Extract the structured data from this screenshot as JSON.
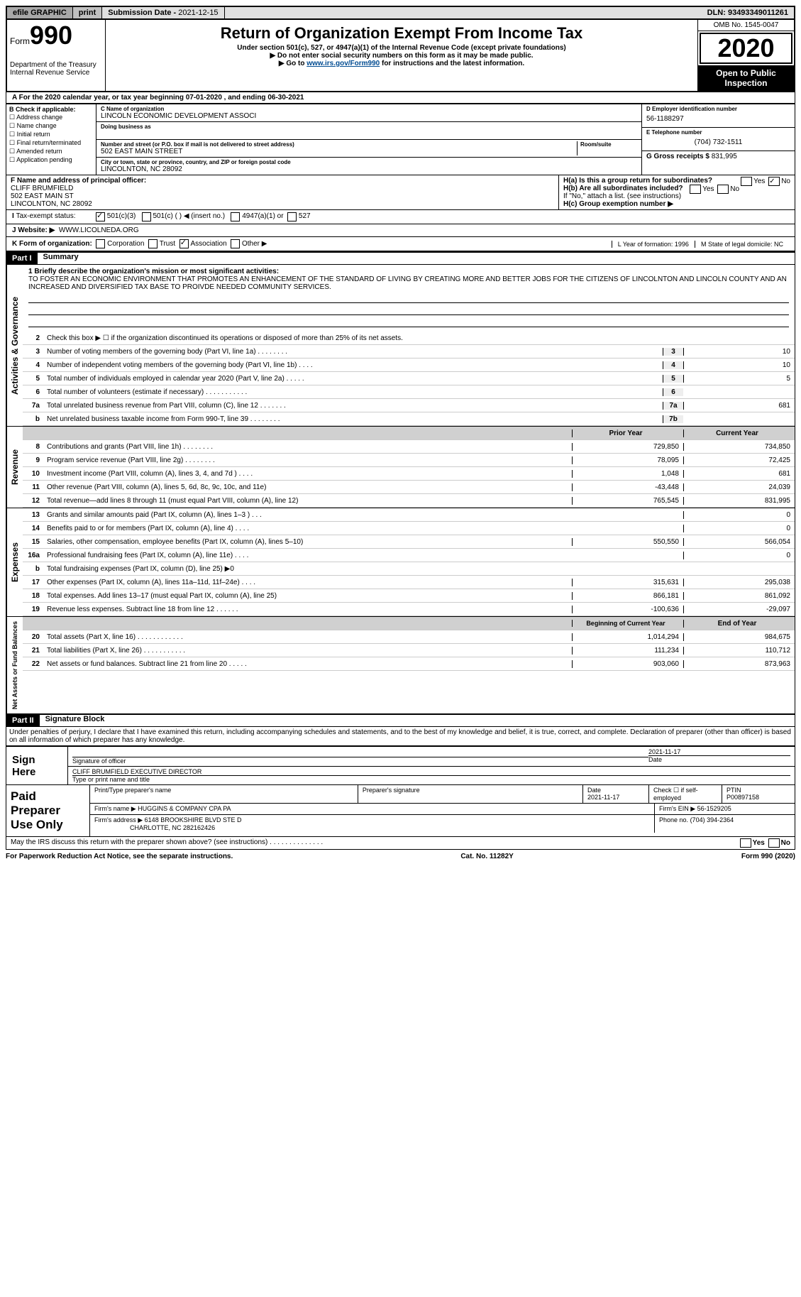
{
  "topbar": {
    "efile": "efile GRAPHIC",
    "print": "print",
    "submission_label": "Submission Date - ",
    "submission_date": "2021-12-15",
    "dln_label": "DLN: ",
    "dln": "93493349011261"
  },
  "header": {
    "form_word": "Form",
    "form_num": "990",
    "dept": "Department of the Treasury",
    "irs": "Internal Revenue Service",
    "title": "Return of Organization Exempt From Income Tax",
    "sub1": "Under section 501(c), 527, or 4947(a)(1) of the Internal Revenue Code (except private foundations)",
    "sub2": "▶ Do not enter social security numbers on this form as it may be made public.",
    "sub3_pre": "▶ Go to ",
    "sub3_link": "www.irs.gov/Form990",
    "sub3_post": " for instructions and the latest information.",
    "omb": "OMB No. 1545-0047",
    "year": "2020",
    "open": "Open to Public Inspection"
  },
  "taxyear": "A For the 2020 calendar year, or tax year beginning 07-01-2020  , and ending 06-30-2021",
  "colB": {
    "header": "B Check if applicable:",
    "items": [
      "Address change",
      "Name change",
      "Initial return",
      "Final return/terminated",
      "Amended return",
      "Application pending"
    ]
  },
  "boxC": {
    "label": "C Name of organization",
    "name": "LINCOLN ECONOMIC DEVELOPMENT ASSOCI",
    "dba_label": "Doing business as",
    "street_label": "Number and street (or P.O. box if mail is not delivered to street address)",
    "room_label": "Room/suite",
    "street": "502 EAST MAIN STREET",
    "city_label": "City or town, state or province, country, and ZIP or foreign postal code",
    "city": "LINCOLNTON, NC  28092"
  },
  "boxD": {
    "label": "D Employer identification number",
    "val": "56-1188297"
  },
  "boxE": {
    "label": "E Telephone number",
    "val": "(704) 732-1511"
  },
  "boxG": {
    "label": "G Gross receipts $",
    "val": "831,995"
  },
  "boxF": {
    "label": "F  Name and address of principal officer:",
    "name": "CLIFF BRUMFIELD",
    "addr1": "502 EAST MAIN ST",
    "addr2": "LINCOLNTON, NC  28092"
  },
  "boxH": {
    "ha": "H(a)  Is this a group return for subordinates?",
    "hb": "H(b)  Are all subordinates included?",
    "hnote": "If \"No,\" attach a list. (see instructions)",
    "hc": "H(c)  Group exemption number ▶",
    "yes": "Yes",
    "no": "No"
  },
  "taxexempt": {
    "label": "Tax-exempt status:",
    "o1": "501(c)(3)",
    "o2": "501(c) (  ) ◀ (insert no.)",
    "o3": "4947(a)(1) or",
    "o4": "527"
  },
  "website": {
    "label": "J    Website: ▶",
    "val": "WWW.LICOLNEDA.ORG"
  },
  "kline": {
    "label": "K Form of organization:",
    "o1": "Corporation",
    "o2": "Trust",
    "o3": "Association",
    "o4": "Other ▶",
    "l": "L Year of formation: 1996",
    "m": "M State of legal domicile: NC"
  },
  "part1": {
    "num": "Part I",
    "title": "Summary"
  },
  "gov": {
    "label": "Activities & Governance",
    "l1_label": "1   Briefly describe the organization's mission or most significant activities:",
    "l1_text": "TO FOSTER AN ECONOMIC ENVIRONMENT THAT PROMOTES AN ENHANCEMENT OF THE STANDARD OF LIVING BY CREATING MORE AND BETTER JOBS FOR THE CITIZENS OF LINCOLNTON AND LINCOLN COUNTY AND AN INCREASED AND DIVERSIFIED TAX BASE TO PROIVDE NEEDED COMMUNITY SERVICES.",
    "l2": "Check this box ▶ ☐  if the organization discontinued its operations or disposed of more than 25% of its net assets.",
    "lines": [
      {
        "n": "3",
        "d": "Number of voting members of the governing body (Part VI, line 1a)  .   .   .   .   .   .   .   .",
        "b": "3",
        "v": "10"
      },
      {
        "n": "4",
        "d": "Number of independent voting members of the governing body (Part VI, line 1b)   .   .   .   .",
        "b": "4",
        "v": "10"
      },
      {
        "n": "5",
        "d": "Total number of individuals employed in calendar year 2020 (Part V, line 2a)   .   .   .   .   .",
        "b": "5",
        "v": "5"
      },
      {
        "n": "6",
        "d": "Total number of volunteers (estimate if necessary)   .   .   .   .   .   .   .   .   .   .   .",
        "b": "6",
        "v": ""
      },
      {
        "n": "7a",
        "d": "Total unrelated business revenue from Part VIII, column (C), line 12   .   .   .   .   .   .   .",
        "b": "7a",
        "v": "681"
      },
      {
        "n": "b",
        "d": "Net unrelated business taxable income from Form 990-T, line 39   .   .   .   .   .   .   .   .",
        "b": "7b",
        "v": ""
      }
    ]
  },
  "rev": {
    "label": "Revenue",
    "header": {
      "py": "Prior Year",
      "cy": "Current Year"
    },
    "lines": [
      {
        "n": "8",
        "d": "Contributions and grants (Part VIII, line 1h)   .   .   .   .   .   .   .   .",
        "py": "729,850",
        "cy": "734,850"
      },
      {
        "n": "9",
        "d": "Program service revenue (Part VIII, line 2g)   .   .   .   .   .   .   .   .",
        "py": "78,095",
        "cy": "72,425"
      },
      {
        "n": "10",
        "d": "Investment income (Part VIII, column (A), lines 3, 4, and 7d )   .   .   .   .",
        "py": "1,048",
        "cy": "681"
      },
      {
        "n": "11",
        "d": "Other revenue (Part VIII, column (A), lines 5, 6d, 8c, 9c, 10c, and 11e)",
        "py": "-43,448",
        "cy": "24,039"
      },
      {
        "n": "12",
        "d": "Total revenue—add lines 8 through 11 (must equal Part VIII, column (A), line 12)",
        "py": "765,545",
        "cy": "831,995"
      }
    ]
  },
  "exp": {
    "label": "Expenses",
    "lines": [
      {
        "n": "13",
        "d": "Grants and similar amounts paid (Part IX, column (A), lines 1–3 )  .   .   .",
        "py": "",
        "cy": "0"
      },
      {
        "n": "14",
        "d": "Benefits paid to or for members (Part IX, column (A), line 4)  .   .   .   .",
        "py": "",
        "cy": "0"
      },
      {
        "n": "15",
        "d": "Salaries, other compensation, employee benefits (Part IX, column (A), lines 5–10)",
        "py": "550,550",
        "cy": "566,054"
      },
      {
        "n": "16a",
        "d": "Professional fundraising fees (Part IX, column (A), line 11e)  .   .   .   .",
        "py": "",
        "cy": "0"
      },
      {
        "n": "b",
        "d": "Total fundraising expenses (Part IX, column (D), line 25) ▶0",
        "py": "—",
        "cy": "—"
      },
      {
        "n": "17",
        "d": "Other expenses (Part IX, column (A), lines 11a–11d, 11f–24e)  .   .   .   .",
        "py": "315,631",
        "cy": "295,038"
      },
      {
        "n": "18",
        "d": "Total expenses. Add lines 13–17 (must equal Part IX, column (A), line 25)",
        "py": "866,181",
        "cy": "861,092"
      },
      {
        "n": "19",
        "d": "Revenue less expenses. Subtract line 18 from line 12  .   .   .   .   .   .",
        "py": "-100,636",
        "cy": "-29,097"
      }
    ]
  },
  "net": {
    "label": "Net Assets or Fund Balances",
    "header": {
      "py": "Beginning of Current Year",
      "cy": "End of Year"
    },
    "lines": [
      {
        "n": "20",
        "d": "Total assets (Part X, line 16)  .   .   .   .   .   .   .   .   .   .   .   .",
        "py": "1,014,294",
        "cy": "984,675"
      },
      {
        "n": "21",
        "d": "Total liabilities (Part X, line 26)  .   .   .   .   .   .   .   .   .   .   .",
        "py": "111,234",
        "cy": "110,712"
      },
      {
        "n": "22",
        "d": "Net assets or fund balances. Subtract line 21 from line 20  .   .   .   .   .",
        "py": "903,060",
        "cy": "873,963"
      }
    ]
  },
  "part2": {
    "num": "Part II",
    "title": "Signature Block"
  },
  "perjury": "Under penalties of perjury, I declare that I have examined this return, including accompanying schedules and statements, and to the best of my knowledge and belief, it is true, correct, and complete. Declaration of preparer (other than officer) is based on all information of which preparer has any knowledge.",
  "sign": {
    "here": "Sign Here",
    "sig_label": "Signature of officer",
    "date_label": "Date",
    "date": "2021-11-17",
    "name": "CLIFF BRUMFIELD  EXECUTIVE DIRECTOR",
    "name_label": "Type or print name and title"
  },
  "paid": {
    "label": "Paid Preparer Use Only",
    "h1": "Print/Type preparer's name",
    "h2": "Preparer's signature",
    "date_label": "Date",
    "date": "2021-11-17",
    "check_label": "Check ☐ if self-employed",
    "ptin_label": "PTIN",
    "ptin": "P00897158",
    "firm_label": "Firm's name   ▶",
    "firm": "HUGGINS & COMPANY CPA PA",
    "ein_label": "Firm's EIN ▶",
    "ein": "56-1529205",
    "addr_label": "Firm's address ▶",
    "addr1": "6148 BROOKSHIRE BLVD STE D",
    "addr2": "CHARLOTTE, NC  282162426",
    "phone_label": "Phone no.",
    "phone": "(704) 394-2364"
  },
  "discuss": "May the IRS discuss this return with the preparer shown above? (see instructions)   .   .   .   .   .   .   .   .   .   .   .   .   .   .",
  "footer": {
    "left": "For Paperwork Reduction Act Notice, see the separate instructions.",
    "mid": "Cat. No. 11282Y",
    "right": "Form 990 (2020)"
  }
}
